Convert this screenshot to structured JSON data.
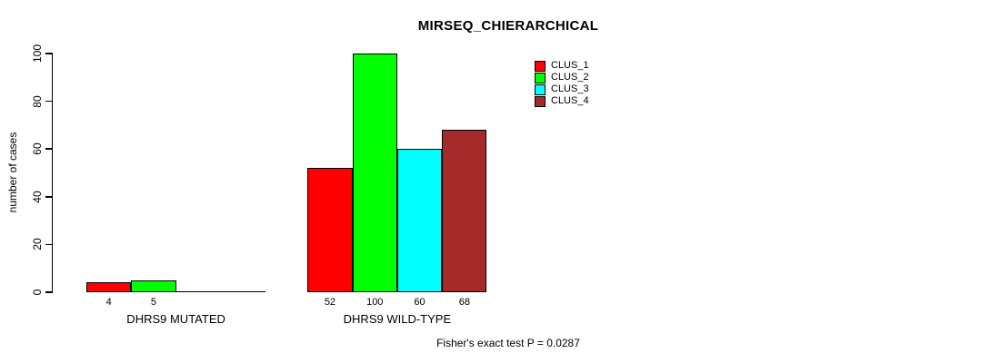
{
  "figure": {
    "title": "MIRSEQ_CHIERARCHICAL",
    "y_axis_label": "number of cases",
    "footer_note": "Fisher's exact test P = 0.0287"
  },
  "chart_data": {
    "type": "bar",
    "title": "MIRSEQ_CHIERARCHICAL",
    "xlabel": "",
    "ylabel": "number of cases",
    "ylim": [
      0,
      100
    ],
    "yticks": [
      0,
      20,
      40,
      60,
      80,
      100
    ],
    "grid": false,
    "legend_position": "top-right-inside",
    "categories": [
      "DHRS9 MUTATED",
      "DHRS9 WILD-TYPE"
    ],
    "series": [
      {
        "name": "CLUS_1",
        "color": "#FF0000",
        "values": [
          4,
          52
        ]
      },
      {
        "name": "CLUS_2",
        "color": "#00FF00",
        "values": [
          5,
          100
        ]
      },
      {
        "name": "CLUS_3",
        "color": "#00FFFF",
        "values": [
          0,
          60
        ]
      },
      {
        "name": "CLUS_4",
        "color": "#A52A2A",
        "values": [
          0,
          68
        ]
      }
    ],
    "bar_value_labels": [
      [
        "4",
        "5",
        "",
        ""
      ],
      [
        "52",
        "100",
        "60",
        "68"
      ]
    ],
    "annotation": "Fisher's exact test P = 0.0287"
  }
}
